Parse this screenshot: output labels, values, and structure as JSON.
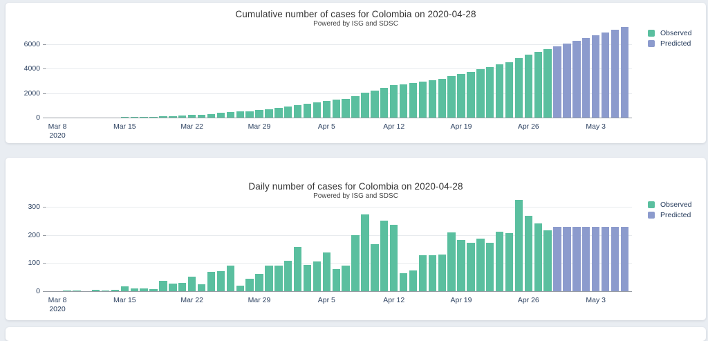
{
  "page": {
    "background": "#e9edf2",
    "card_background": "#ffffff",
    "gridline_color": "#e8ebee",
    "axis_line_color": "#979ca3",
    "tick_text_color": "#2a3f5f",
    "title_text_color": "#333333"
  },
  "chart_data": [
    {
      "type": "bar",
      "title": "Cumulative number of cases for Colombia on 2020-04-28",
      "subtitle": "Powered by ISG and SDSC",
      "legend_position": "top-right",
      "grid": true,
      "ylim": [
        0,
        7500
      ],
      "y_ticks": [
        0,
        2000,
        4000,
        6000
      ],
      "categories": [
        "Mar 8",
        "Mar 9",
        "Mar 10",
        "Mar 11",
        "Mar 12",
        "Mar 13",
        "Mar 14",
        "Mar 15",
        "Mar 16",
        "Mar 17",
        "Mar 18",
        "Mar 19",
        "Mar 20",
        "Mar 21",
        "Mar 22",
        "Mar 23",
        "Mar 24",
        "Mar 25",
        "Mar 26",
        "Mar 27",
        "Mar 28",
        "Mar 29",
        "Mar 30",
        "Mar 31",
        "Apr 1",
        "Apr 2",
        "Apr 3",
        "Apr 4",
        "Apr 5",
        "Apr 6",
        "Apr 7",
        "Apr 8",
        "Apr 9",
        "Apr 10",
        "Apr 11",
        "Apr 12",
        "Apr 13",
        "Apr 14",
        "Apr 15",
        "Apr 16",
        "Apr 17",
        "Apr 18",
        "Apr 19",
        "Apr 20",
        "Apr 21",
        "Apr 22",
        "Apr 23",
        "Apr 24",
        "Apr 25",
        "Apr 26",
        "Apr 27",
        "Apr 28",
        "Apr 29",
        "Apr 30",
        "May 1",
        "May 2",
        "May 3",
        "May 4",
        "May 5",
        "May 6"
      ],
      "x_ticks": [
        {
          "index": 0,
          "label": "Mar 8",
          "sublabel": "2020"
        },
        {
          "index": 7,
          "label": "Mar 15"
        },
        {
          "index": 14,
          "label": "Mar 22"
        },
        {
          "index": 21,
          "label": "Mar 29"
        },
        {
          "index": 28,
          "label": "Apr 5"
        },
        {
          "index": 35,
          "label": "Apr 12"
        },
        {
          "index": 42,
          "label": "Apr 19"
        },
        {
          "index": 49,
          "label": "Apr 26"
        },
        {
          "index": 56,
          "label": "May 3"
        }
      ],
      "series": [
        {
          "name": "Observed",
          "color": "#5abf9f",
          "offset": 0,
          "values": [
            1,
            3,
            5,
            6,
            12,
            14,
            20,
            37,
            47,
            58,
            66,
            103,
            129,
            159,
            211,
            236,
            306,
            378,
            470,
            490,
            534,
            596,
            688,
            780,
            887,
            1044,
            1137,
            1243,
            1380,
            1458,
            1548,
            1748,
            2020,
            2187,
            2437,
            2674,
            2739,
            2814,
            2943,
            3070,
            3200,
            3409,
            3592,
            3764,
            3951,
            4124,
            4335,
            4542,
            4867,
            5134,
            5374,
            5590
          ]
        },
        {
          "name": "Predicted",
          "color": "#8c9bcd",
          "offset": 52,
          "values": [
            5818,
            6046,
            6274,
            6502,
            6730,
            6958,
            7186,
            7414
          ]
        }
      ]
    },
    {
      "type": "bar",
      "title": "Daily number of cases for Colombia on 2020-04-28",
      "subtitle": "Powered by ISG and SDSC",
      "legend_position": "top-right",
      "grid": true,
      "ylim": [
        0,
        340
      ],
      "y_ticks": [
        0,
        100,
        200,
        300
      ],
      "categories": [
        "Mar 8",
        "Mar 9",
        "Mar 10",
        "Mar 11",
        "Mar 12",
        "Mar 13",
        "Mar 14",
        "Mar 15",
        "Mar 16",
        "Mar 17",
        "Mar 18",
        "Mar 19",
        "Mar 20",
        "Mar 21",
        "Mar 22",
        "Mar 23",
        "Mar 24",
        "Mar 25",
        "Mar 26",
        "Mar 27",
        "Mar 28",
        "Mar 29",
        "Mar 30",
        "Mar 31",
        "Apr 1",
        "Apr 2",
        "Apr 3",
        "Apr 4",
        "Apr 5",
        "Apr 6",
        "Apr 7",
        "Apr 8",
        "Apr 9",
        "Apr 10",
        "Apr 11",
        "Apr 12",
        "Apr 13",
        "Apr 14",
        "Apr 15",
        "Apr 16",
        "Apr 17",
        "Apr 18",
        "Apr 19",
        "Apr 20",
        "Apr 21",
        "Apr 22",
        "Apr 23",
        "Apr 24",
        "Apr 25",
        "Apr 26",
        "Apr 27",
        "Apr 28",
        "Apr 29",
        "Apr 30",
        "May 1",
        "May 2",
        "May 3",
        "May 4",
        "May 5",
        "May 6"
      ],
      "x_ticks": [
        {
          "index": 0,
          "label": "Mar 8",
          "sublabel": "2020"
        },
        {
          "index": 7,
          "label": "Mar 15"
        },
        {
          "index": 14,
          "label": "Mar 22"
        },
        {
          "index": 21,
          "label": "Mar 29"
        },
        {
          "index": 28,
          "label": "Apr 5"
        },
        {
          "index": 35,
          "label": "Apr 12"
        },
        {
          "index": 42,
          "label": "Apr 19"
        },
        {
          "index": 49,
          "label": "Apr 26"
        },
        {
          "index": 56,
          "label": "May 3"
        }
      ],
      "series": [
        {
          "name": "Observed",
          "color": "#5abf9f",
          "offset": 0,
          "values": [
            1,
            2,
            2,
            1,
            6,
            2,
            6,
            17,
            10,
            11,
            8,
            37,
            26,
            30,
            52,
            25,
            70,
            72,
            92,
            20,
            44,
            62,
            92,
            92,
            107,
            157,
            93,
            106,
            137,
            78,
            90,
            200,
            272,
            167,
            250,
            237,
            65,
            75,
            129,
            127,
            130,
            209,
            183,
            172,
            187,
            173,
            211,
            207,
            325,
            267,
            240,
            216
          ]
        },
        {
          "name": "Predicted",
          "color": "#8c9bcd",
          "offset": 52,
          "values": [
            228,
            228,
            228,
            228,
            228,
            228,
            228,
            228
          ]
        }
      ]
    }
  ]
}
